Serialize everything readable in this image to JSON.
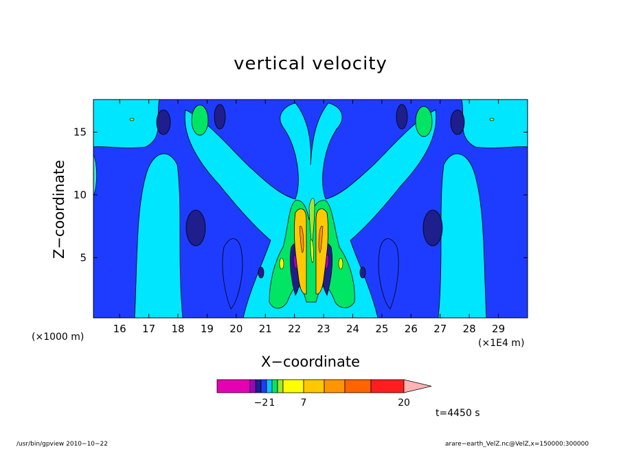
{
  "chart_data": {
    "type": "contour",
    "title": "vertical velocity",
    "xlabel": "X−coordinate",
    "ylabel": "Z−coordinate",
    "x_unit_label": "(×1000 m)",
    "x_scale_label": "(×1E4 m)",
    "x_ticks": [
      16,
      17,
      18,
      19,
      20,
      21,
      22,
      23,
      24,
      25,
      26,
      27,
      28,
      29
    ],
    "y_ticks": [
      5,
      10,
      15
    ],
    "xlim": [
      15.1,
      30
    ],
    "ylim": [
      0.2,
      17.6
    ],
    "colorbar": {
      "colors": [
        "#e600b4",
        "#a000c8",
        "#1e1e8c",
        "#1e3cff",
        "#00c8ff",
        "#00e664",
        "#a0e632",
        "#ffff00",
        "#ffc800",
        "#ff9600",
        "#ff6400",
        "#ff1e1e",
        "#ff7878",
        "#ffb4b4"
      ],
      "labels": [
        {
          "text": "−2",
          "index": 3
        },
        {
          "text": "1",
          "index": 5
        },
        {
          "text": "7",
          "index": 8
        },
        {
          "text": "20",
          "index": 12
        }
      ]
    },
    "time_label": "t=4450 s"
  },
  "footer": {
    "left": "/usr/bin/gpview   2010−10−22",
    "right": "arare−earth_VelZ.nc@VelZ,x=150000:300000"
  },
  "colors": {
    "bg": "#1e3cff",
    "cyan": "#00e6ff",
    "dark": "#1e1e8c",
    "green": "#00e664",
    "yellow": "#ffc800",
    "orange": "#ff9600"
  }
}
